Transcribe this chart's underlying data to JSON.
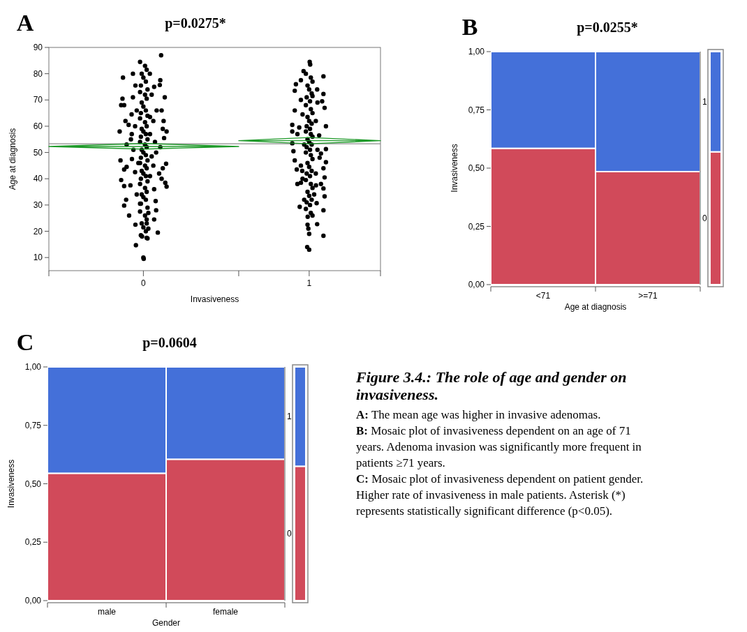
{
  "chart_data": [
    {
      "type": "scatter",
      "title": "p=0.0275*",
      "annotations": [
        "A"
      ],
      "xlabel": "Invasiveness",
      "ylabel": "Age at diagnosis",
      "xlim": [
        -0.57,
        1.43
      ],
      "xticks": [
        {
          "value": -0.57,
          "label": null
        },
        0,
        {
          "value": 0.575,
          "label": null
        },
        1,
        {
          "value": 1.43,
          "label": null
        }
      ],
      "ylim": [
        5,
        90
      ],
      "yticks": [
        10,
        20,
        30,
        40,
        50,
        60,
        70,
        80,
        90
      ],
      "ref_lines": [
        {
          "axis": "y",
          "value": 53.3,
          "color": "#8c8c8c"
        }
      ],
      "series": [
        {
          "type": "scatter",
          "marker": "circle",
          "color": "#000000",
          "x": [
            0.107,
            -0.123,
            -0.063,
            0.039,
            0.102,
            0.099,
            0.065,
            -0.048,
            0.129,
            -0.126,
            -0.134,
            -0.116,
            -0.063,
            -0.071,
            0.11,
            0.122,
            -0.108,
            -0.089,
            -0.143,
            0.14,
            0.117,
            0.125,
            -0.075,
            -0.101,
            0.102,
            0.077,
            -0.138,
            -0.069,
            0.137,
            -0.116,
            -0.101,
            0.117,
            0.095,
            0.11,
            -0.134,
            0.132,
            0.14,
            -0.078,
            -0.116,
            0.065,
            -0.104,
            -0.116,
            0.074,
            0.077,
            -0.086,
            -0.048,
            0.065,
            0.087,
            -0.045,
            0,
            0.002,
            0.02,
            -0.008,
            -0.02,
            0.01,
            0.02,
            -0.01,
            0,
            0.015,
            -0.015,
            0.025,
            -0.02,
            0.01,
            0.02,
            -0.01,
            0,
            0.015,
            -0.015,
            0.025,
            -0.02,
            0.01,
            0.02,
            -0.01,
            0,
            0.015,
            -0.015,
            0.025,
            -0.02,
            0.01,
            0.02,
            -0.01,
            0,
            0.015,
            -0.015,
            0.025,
            -0.02,
            0.01,
            0.02,
            -0.01,
            0,
            0.015,
            -0.015,
            0.025,
            -0.02,
            0.01,
            0.02,
            -0.01,
            0,
            0.015,
            -0.015,
            0.025,
            -0.02,
            0.01,
            0.02,
            -0.01,
            0,
            0.015,
            -0.015,
            0.025,
            0.05,
            -0.04,
            0.06,
            -0.05,
            0.04,
            0.07,
            -0.06,
            0.05,
            -0.03,
            0.06,
            -0.05,
            0.04,
            -0.04,
            0.03,
            0.02,
            0.04,
            -0.07,
            0.08,
            -0.02,
            0.03
          ],
          "values": [
            87,
            78.5,
            80,
            80,
            77.5,
            75.7,
            75,
            75.5,
            71,
            70.5,
            68,
            68,
            71,
            64.5,
            66,
            62,
            62,
            60.5,
            58,
            58,
            59,
            55.5,
            55,
            53,
            52,
            50,
            47,
            47.5,
            45.7,
            43.5,
            44.5,
            44,
            42,
            40,
            39.5,
            38.5,
            37,
            37.5,
            37.2,
            36,
            32,
            29.8,
            31.5,
            28,
            26,
            22.5,
            24.5,
            19.5,
            14.7,
            10,
            9.5,
            17.5,
            18,
            84.5,
            83,
            81.5,
            80,
            78.5,
            77,
            75.5,
            74,
            73,
            72,
            70.5,
            69,
            67.5,
            66,
            65,
            64,
            63,
            61.5,
            60,
            59,
            58,
            57,
            56,
            55,
            54,
            53,
            52,
            51,
            50,
            49,
            48,
            47,
            46,
            45,
            44,
            43,
            42,
            41,
            40,
            39,
            38,
            36.5,
            35,
            34,
            33,
            32,
            30.5,
            29,
            27.5,
            26,
            24.5,
            23,
            21.5,
            20,
            18.5,
            17.3,
            72,
            66,
            62,
            60,
            57,
            54,
            51,
            48.5,
            46,
            45,
            42.5,
            41,
            34,
            27,
            23,
            63.5,
            57,
            66,
            30.5,
            21
          ]
        },
        {
          "type": "scatter",
          "marker": "circle",
          "color": "#000000",
          "x": [
            1.086,
            0.966,
            1.003,
            1.006,
            0.913,
            0.92,
            0.95,
            1.086,
            1.048,
            1.078,
            1.093,
            0.913,
            0.898,
            1.101,
            0.898,
            0.929,
            0.898,
            0.905,
            1.101,
            0.913,
            1.071,
            1.063,
            1.101,
            0.925,
            1.086,
            0.958,
            1.093,
            0.929,
            0.95,
            1.071,
            1.086,
            0.943,
            1.093,
            1.086,
            1.045,
            1.048,
            1.086,
            0.988,
            1,
            1,
            0.995,
            0.991,
            1.041,
            0.98,
            1.01,
            1.02,
            0.99,
            1,
            1.015,
            0.985,
            1.005,
            0.98,
            1.01,
            1.02,
            0.99,
            1,
            1.015,
            0.985,
            1.005,
            0.98,
            1.01,
            1.02,
            0.99,
            1,
            1.015,
            0.985,
            1.005,
            0.98,
            1.01,
            1.02,
            0.99,
            1,
            1.015,
            0.985,
            1.005,
            0.98,
            1.01,
            1.02,
            0.99,
            1,
            1.015,
            0.985,
            1.005,
            0.98,
            1.01,
            1.02,
            0.95,
            1.05,
            0.96,
            1.04,
            0.94,
            1.06,
            0.97,
            1.05,
            0.95,
            1.04,
            0.96,
            1.03,
            0.97,
            1.02,
            0.99
          ],
          "values": [
            79,
            81,
            84.5,
            83.5,
            73.5,
            76,
            77.5,
            72.3,
            74,
            69.5,
            67,
            66,
            60.5,
            60,
            58,
            57,
            53.5,
            50.5,
            51.3,
            47,
            49.6,
            48,
            46.3,
            43.5,
            44,
            43,
            40.5,
            38,
            38.5,
            38,
            36.3,
            29.3,
            33.3,
            28,
            30.7,
            22.7,
            18.3,
            14,
            13,
            19,
            21,
            25.5,
            37.5,
            80,
            78.5,
            77,
            75.5,
            74,
            72.5,
            71,
            69.5,
            68,
            66.5,
            65,
            63.5,
            62,
            61,
            60,
            59,
            58,
            57,
            56,
            55,
            54,
            53,
            52,
            51,
            50,
            49,
            47.5,
            46,
            44.5,
            43,
            42,
            41,
            39.5,
            38,
            36.5,
            35,
            33.5,
            32,
            31,
            30,
            28.5,
            27,
            26,
            70,
            69,
            64.5,
            62,
            59.5,
            56.5,
            53,
            51,
            45,
            42,
            40,
            34,
            32,
            71.5,
            22.5
          ]
        },
        {
          "type": "line",
          "color": "#1f9a2a",
          "x": [
            -0.57,
            0,
            0.575,
            0,
            -0.57,
            0.575
          ],
          "values": [
            52.3,
            53.4,
            52.3,
            51.3,
            52.3,
            52.3
          ]
        },
        {
          "type": "line",
          "color": "#1f9a2a",
          "x": [
            0.575,
            1,
            1.43,
            1,
            0.575,
            1.43
          ],
          "values": [
            54.5,
            55.7,
            54.5,
            53.3,
            54.5,
            54.5
          ]
        }
      ]
    },
    {
      "type": "bar",
      "stacked": true,
      "title": "p=0.0255*",
      "annotations": [
        "B"
      ],
      "xlabel": "Age at diagnosis",
      "ylabel": "Invasiveness",
      "categories": [
        "<71",
        ">=71",
        null
      ],
      "ylim": [
        0,
        1
      ],
      "yticks": [
        {
          "value": 0,
          "label": "0,00"
        },
        {
          "value": 0.25,
          "label": "0,25"
        },
        {
          "value": 0.5,
          "label": "0,50"
        },
        {
          "value": 0.75,
          "label": "0,75"
        },
        {
          "value": 1,
          "label": "1,00"
        }
      ],
      "series": [
        {
          "name": "0",
          "color": "#d14a5a",
          "values": [
            0.585,
            0.485,
            0.57
          ]
        },
        {
          "name": "1",
          "color": "#4470d9",
          "values": [
            0.415,
            0.515,
            0.43
          ]
        }
      ]
    },
    {
      "type": "bar",
      "stacked": true,
      "title": "p=0.0604",
      "annotations": [
        "C"
      ],
      "xlabel": "Gender",
      "ylabel": "Invasiveness",
      "categories": [
        "male",
        "female",
        null
      ],
      "ylim": [
        0,
        1
      ],
      "yticks": [
        {
          "value": 0,
          "label": "0,00"
        },
        {
          "value": 0.25,
          "label": "0,25"
        },
        {
          "value": 0.5,
          "label": "0,50"
        },
        {
          "value": 0.75,
          "label": "0,75"
        },
        {
          "value": 1,
          "label": "1,00"
        }
      ],
      "series": [
        {
          "name": "0",
          "color": "#d14a5a",
          "values": [
            0.545,
            0.605,
            0.575
          ]
        },
        {
          "name": "1",
          "color": "#4470d9",
          "values": [
            0.455,
            0.395,
            0.425
          ]
        }
      ]
    },
    {
      "type": "other",
      "title": "Figure 3.4.: The role of age and gender on invasiveness.",
      "annotations": [
        "A: The mean age was higher in invasive adenomas.",
        "B: Mosaic plot of invasiveness dependent on an age of 71 years. Adenoma invasion was significantly more frequent in patients ≥71 years.",
        "C: Mosaic plot of invasiveness dependent on patient gender. Higher rate of invasiveness in male patients. Asterisk (*) represents statistically significant difference (p<0.05)."
      ]
    }
  ]
}
